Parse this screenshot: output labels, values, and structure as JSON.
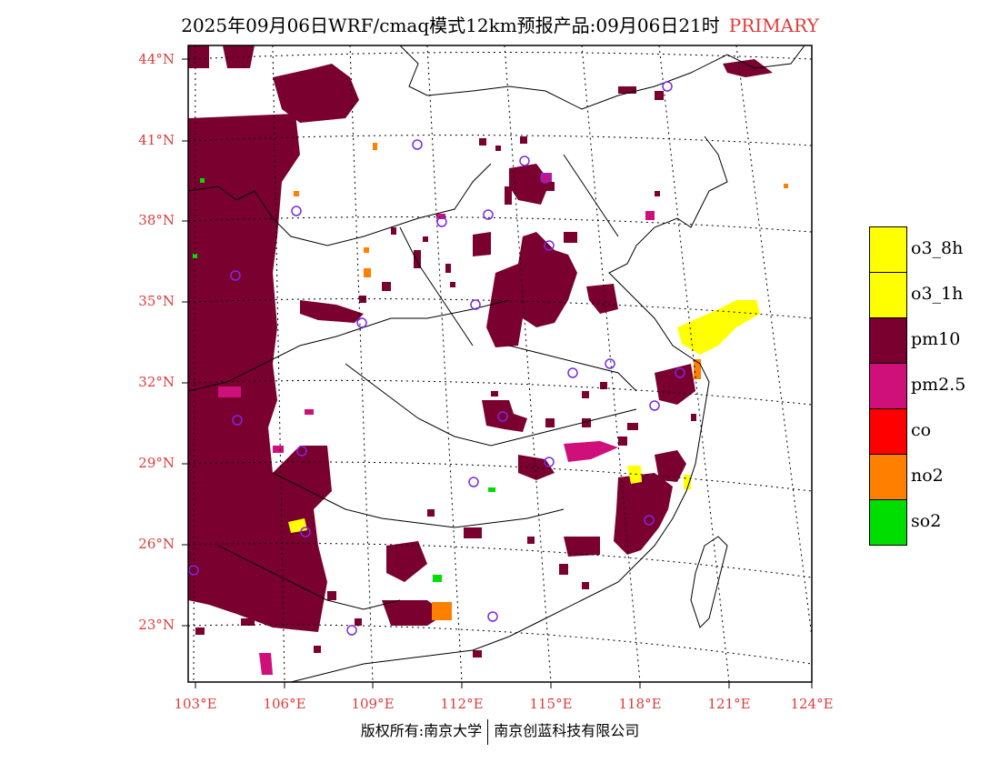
{
  "title": {
    "main": "2025年09月06日WRF/cmaq模式12km预报产品:09月06日21时",
    "tag": "PRIMARY",
    "tag_color": "#e03a3a"
  },
  "map": {
    "lat_labels": [
      "44°N",
      "41°N",
      "38°N",
      "35°N",
      "32°N",
      "29°N",
      "26°N",
      "23°N"
    ],
    "lon_labels": [
      "103°E",
      "106°E",
      "109°E",
      "112°E",
      "115°E",
      "118°E",
      "121°E",
      "124°E"
    ],
    "label_color": "#e03a3a",
    "frame_color": "#000000"
  },
  "legend": {
    "items": [
      {
        "label": "o3_8h",
        "color": "#ffff00"
      },
      {
        "label": "o3_1h",
        "color": "#ffff00"
      },
      {
        "label": "pm10",
        "color": "#7a0030"
      },
      {
        "label": "pm2.5",
        "color": "#d0107a"
      },
      {
        "label": "co",
        "color": "#ff0000"
      },
      {
        "label": "no2",
        "color": "#ff7f00"
      },
      {
        "label": "so2",
        "color": "#00dd00"
      }
    ]
  },
  "footer": {
    "left": "版权所有:南京大学",
    "right": "南京创蓝科技有限公司"
  }
}
